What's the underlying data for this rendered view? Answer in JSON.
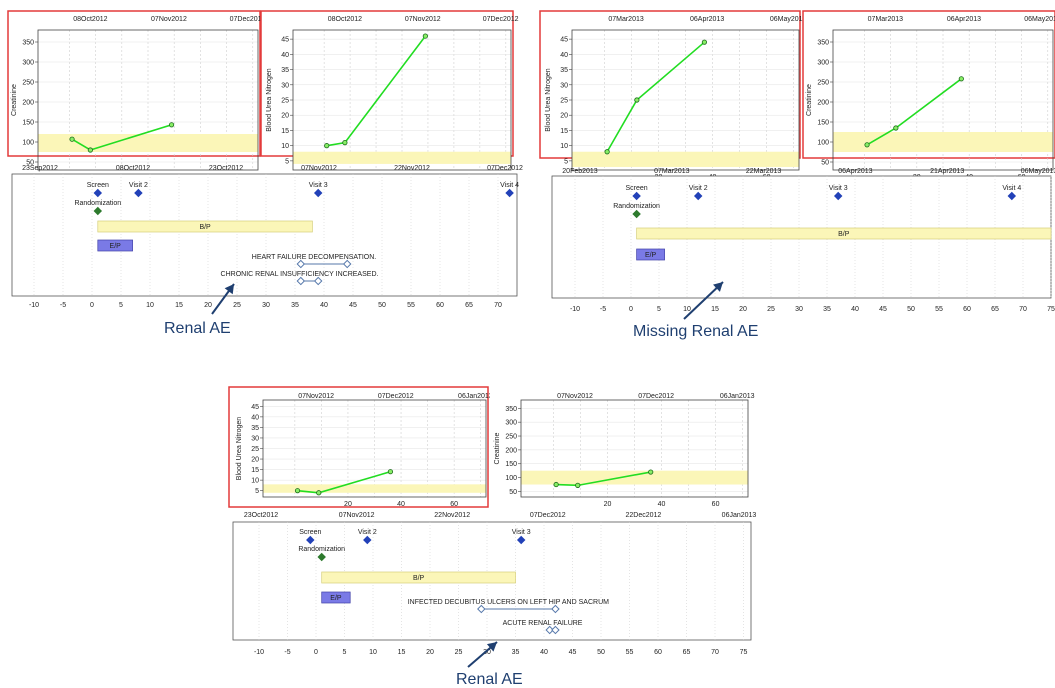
{
  "colors": {
    "frame_highlight": "#e33a3a",
    "normal_band": "#fbf6b8",
    "series_line": "#22dd22",
    "marker_fill": "#88ee66",
    "visit_marker": "#2241b8",
    "randomization_marker": "#2d7a2d",
    "bp_bar": "#fbf6b8",
    "ep_bar": "#7a7ae6",
    "ae_line": "#5577aa",
    "annotation": "#1f3f70"
  },
  "timeline_axis_ticks": [
    "-10",
    "-5",
    "0",
    "5",
    "10",
    "15",
    "20",
    "25",
    "30",
    "35",
    "40",
    "45",
    "50",
    "55",
    "60",
    "65",
    "70",
    "75"
  ],
  "panels": [
    {
      "id": "p1",
      "annotation": "Renal AE",
      "charts": [
        {
          "type": "line",
          "ylabel": "Creatinine",
          "highlighted": true,
          "dates": [
            "08Oct2012",
            "07Nov2012",
            "07Dec2012"
          ],
          "xticks": [
            "20",
            "40",
            "60"
          ],
          "yticks": [
            "50",
            "100",
            "150",
            "200",
            "250",
            "300",
            "350"
          ],
          "band": [
            75,
            120
          ],
          "ylim": [
            30,
            380
          ],
          "xlim": [
            -12,
            72
          ],
          "points": [
            [
              1,
              107
            ],
            [
              8,
              80
            ],
            [
              39,
              143
            ]
          ]
        },
        {
          "type": "line",
          "ylabel": "Blood Urea Nitrogen",
          "highlighted": true,
          "dates": [
            "08Oct2012",
            "07Nov2012",
            "07Dec2012"
          ],
          "xticks": [
            "20",
            "40",
            "60"
          ],
          "yticks": [
            "5",
            "10",
            "15",
            "20",
            "25",
            "30",
            "35",
            "40",
            "45"
          ],
          "band": [
            4,
            8
          ],
          "ylim": [
            2,
            48
          ],
          "xlim": [
            -12,
            72
          ],
          "points": [
            [
              1,
              10
            ],
            [
              8,
              11
            ],
            [
              39,
              46
            ]
          ]
        }
      ],
      "timeline": {
        "dates": [
          "23Sep2012",
          "08Oct2012",
          "23Oct2012",
          "07Nov2012",
          "22Nov2012",
          "07Dec2012"
        ],
        "visits": [
          {
            "label": "Screen",
            "day": 1
          },
          {
            "label": "Visit 2",
            "day": 8
          },
          {
            "label": "Visit 3",
            "day": 39
          },
          {
            "label": "Visit 4",
            "day": 72
          }
        ],
        "randomization": {
          "label": "Randomization",
          "day": 1
        },
        "bp": {
          "label": "B/P",
          "start": 1,
          "end": 38
        },
        "ep": {
          "label": "E/P",
          "start": 1,
          "end": 7
        },
        "events": [
          {
            "label": "HEART FAILURE DECOMPENSATION.",
            "start": 36,
            "end": 44
          },
          {
            "label": "CHRONIC RENAL INSUFFICIENCY INCREASED.",
            "start": 36,
            "end": 39
          }
        ]
      }
    },
    {
      "id": "p2",
      "annotation": "Missing Renal AE",
      "charts": [
        {
          "type": "line",
          "ylabel": "Blood Urea Nitrogen",
          "highlighted": true,
          "dates": [
            "07Mar2013",
            "06Apr2013",
            "06May2013"
          ],
          "xticks": [
            "20",
            "40",
            "60"
          ],
          "yticks": [
            "5",
            "10",
            "15",
            "20",
            "25",
            "30",
            "35",
            "40",
            "45"
          ],
          "band": [
            3,
            8
          ],
          "ylim": [
            2,
            48
          ],
          "xlim": [
            -12,
            72
          ],
          "points": [
            [
              1,
              8
            ],
            [
              12,
              25
            ],
            [
              37,
              44
            ]
          ]
        },
        {
          "type": "line",
          "ylabel": "Creatinine",
          "highlighted": true,
          "dates": [
            "07Mar2013",
            "06Apr2013",
            "06May2013"
          ],
          "xticks": [
            "20",
            "40",
            "60"
          ],
          "yticks": [
            "50",
            "100",
            "150",
            "200",
            "250",
            "300",
            "350"
          ],
          "band": [
            75,
            125
          ],
          "ylim": [
            30,
            380
          ],
          "xlim": [
            -12,
            72
          ],
          "points": [
            [
              1,
              93
            ],
            [
              12,
              135
            ],
            [
              37,
              258
            ]
          ]
        }
      ],
      "timeline": {
        "dates": [
          "20Feb2013",
          "07Mar2013",
          "22Mar2013",
          "06Apr2013",
          "21Apr2013",
          "06May2013"
        ],
        "visits": [
          {
            "label": "Screen",
            "day": 1
          },
          {
            "label": "Visit 2",
            "day": 12
          },
          {
            "label": "Visit 3",
            "day": 37
          },
          {
            "label": "Visit 4",
            "day": 68
          }
        ],
        "randomization": {
          "label": "Randomization",
          "day": 1
        },
        "bp": {
          "label": "B/P",
          "start": 1,
          "end": 75
        },
        "ep": {
          "label": "E/P",
          "start": 1,
          "end": 6
        },
        "events": []
      }
    },
    {
      "id": "p3",
      "annotation": "Renal AE",
      "charts": [
        {
          "type": "line",
          "ylabel": "Blood Urea Nitrogen",
          "highlighted": true,
          "dates": [
            "07Nov2012",
            "07Dec2012",
            "06Jan2013"
          ],
          "xticks": [
            "20",
            "40",
            "60"
          ],
          "yticks": [
            "5",
            "10",
            "15",
            "20",
            "25",
            "30",
            "35",
            "40",
            "45"
          ],
          "band": [
            4,
            8
          ],
          "ylim": [
            2,
            48
          ],
          "xlim": [
            -12,
            72
          ],
          "points": [
            [
              1,
              5
            ],
            [
              9,
              4
            ],
            [
              36,
              14
            ]
          ]
        },
        {
          "type": "line",
          "ylabel": "Creatinine",
          "highlighted": false,
          "dates": [
            "07Nov2012",
            "07Dec2012",
            "06Jan2013"
          ],
          "xticks": [
            "20",
            "40",
            "60"
          ],
          "yticks": [
            "50",
            "100",
            "150",
            "200",
            "250",
            "300",
            "350"
          ],
          "band": [
            75,
            125
          ],
          "ylim": [
            30,
            380
          ],
          "xlim": [
            -12,
            72
          ],
          "points": [
            [
              1,
              75
            ],
            [
              9,
              72
            ],
            [
              36,
              120
            ]
          ]
        }
      ],
      "timeline": {
        "dates": [
          "23Oct2012",
          "07Nov2012",
          "22Nov2012",
          "07Dec2012",
          "22Dec2012",
          "06Jan2013"
        ],
        "visits": [
          {
            "label": "Screen",
            "day": -1
          },
          {
            "label": "Visit 2",
            "day": 9
          },
          {
            "label": "Visit 3",
            "day": 36
          }
        ],
        "randomization": {
          "label": "Randomization",
          "day": 1
        },
        "bp": {
          "label": "B/P",
          "start": 1,
          "end": 35
        },
        "ep": {
          "label": "E/P",
          "start": 1,
          "end": 6
        },
        "events": [
          {
            "label": "INFECTED DECUBITUS ULCERS ON LEFT HIP AND SACRUM",
            "start": 29,
            "end": 42
          },
          {
            "label": "ACUTE RENAL FAILURE",
            "start": 41,
            "end": 42
          }
        ]
      }
    }
  ]
}
